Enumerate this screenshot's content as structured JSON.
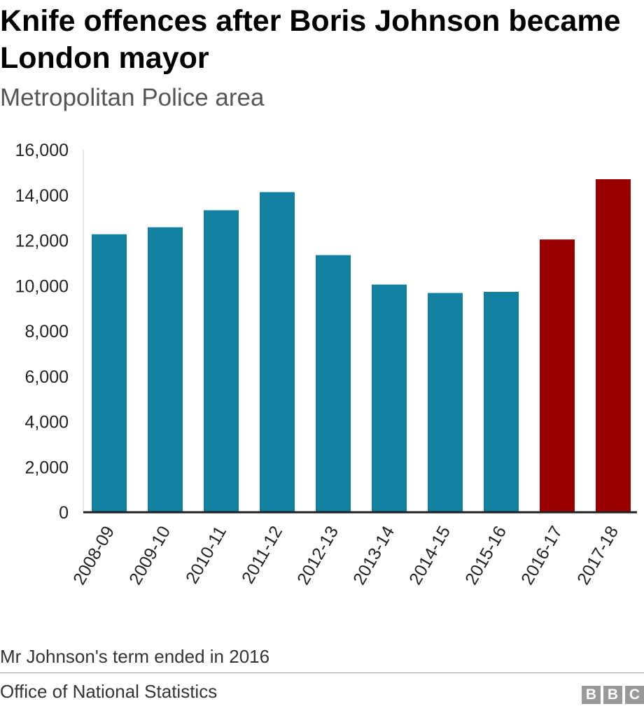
{
  "chart_data": {
    "type": "bar",
    "title": "Knife offences after Boris Johnson became London mayor",
    "subtitle": "Metropolitan Police area",
    "categories": [
      "2008-09",
      "2009-10",
      "2010-11",
      "2011-12",
      "2012-13",
      "2013-14",
      "2014-15",
      "2015-16",
      "2016-17",
      "2017-18"
    ],
    "values": [
      12270,
      12580,
      13330,
      14130,
      11350,
      10050,
      9680,
      9730,
      12040,
      14700
    ],
    "colors": [
      "#1380a1",
      "#1380a1",
      "#1380a1",
      "#1380a1",
      "#1380a1",
      "#1380a1",
      "#1380a1",
      "#1380a1",
      "#990000",
      "#990000"
    ],
    "xlabel": "",
    "ylabel": "",
    "ylim": [
      0,
      16000
    ],
    "yticks": [
      0,
      2000,
      4000,
      6000,
      8000,
      10000,
      12000,
      14000,
      16000
    ],
    "ytick_labels": [
      "0",
      "2,000",
      "4,000",
      "6,000",
      "8,000",
      "10,000",
      "12,000",
      "14,000",
      "16,000"
    ],
    "grid": false,
    "legend": "none"
  },
  "note": "Mr Johnson's term ended in 2016",
  "source": "Office of National Statistics",
  "logo": {
    "letters": [
      "B",
      "B",
      "C"
    ],
    "color": "#999999"
  }
}
